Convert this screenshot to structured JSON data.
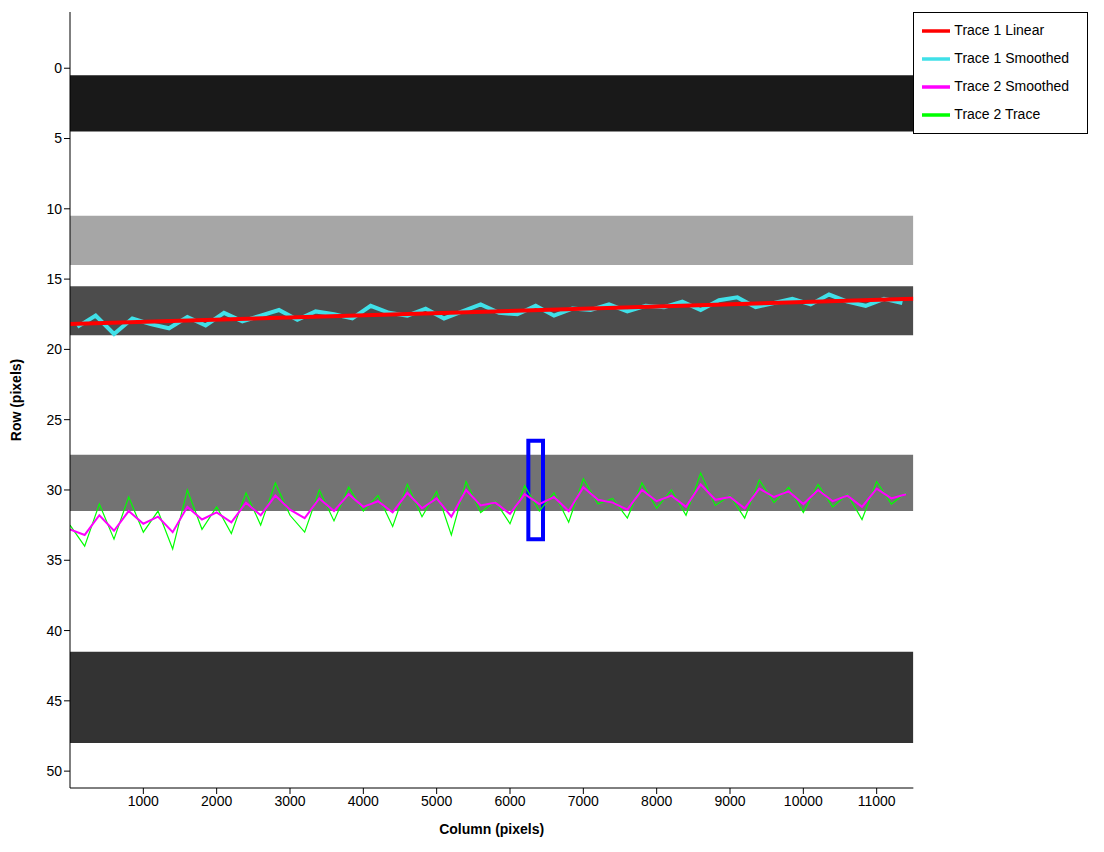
{
  "chart_data": {
    "type": "line",
    "x_label": "Column (pixels)",
    "y_label": "Row (pixels)",
    "xlim": [
      0,
      11500
    ],
    "ylim": [
      -4,
      51.2
    ],
    "xticks": [
      1000,
      2000,
      3000,
      4000,
      5000,
      6000,
      7000,
      8000,
      9000,
      10000,
      11000
    ],
    "yticks": [
      0,
      5,
      10,
      15,
      20,
      25,
      30,
      35,
      40,
      45,
      50
    ],
    "y_reversed": true,
    "legend": "right",
    "grid": false,
    "bands": [
      {
        "rows": [
          0.5,
          4.5
        ],
        "intensity": 0.9
      },
      {
        "rows": [
          10.5,
          14
        ],
        "intensity": 0.35
      },
      {
        "rows": [
          15.5,
          19
        ],
        "intensity": 0.7
      },
      {
        "rows": [
          27.5,
          31.5
        ],
        "intensity": 0.55
      },
      {
        "rows": [
          41.5,
          48
        ],
        "intensity": 0.8
      }
    ],
    "highlight": {
      "x": [
        6250,
        6450
      ],
      "y": [
        26.5,
        33.5
      ],
      "color": "#0000ff"
    },
    "series": [
      {
        "name": "Trace 1 Smoothed",
        "color": "#40e0e8",
        "line_style": "solid",
        "x": [
          100,
          350,
          600,
          850,
          1100,
          1350,
          1600,
          1850,
          2100,
          2350,
          2600,
          2850,
          3100,
          3350,
          3600,
          3850,
          4100,
          4350,
          4600,
          4850,
          5100,
          5350,
          5600,
          5850,
          6100,
          6350,
          6600,
          6850,
          7100,
          7350,
          7600,
          7850,
          8100,
          8350,
          8600,
          8850,
          9100,
          9350,
          9600,
          9850,
          10100,
          10350,
          10600,
          10850,
          11100,
          11350
        ],
        "values": [
          18.4,
          17.6,
          18.9,
          17.8,
          18.2,
          18.5,
          17.7,
          18.3,
          17.4,
          18.0,
          17.6,
          17.2,
          17.9,
          17.3,
          17.5,
          17.8,
          16.9,
          17.4,
          17.6,
          17.1,
          17.8,
          17.3,
          16.8,
          17.4,
          17.5,
          16.9,
          17.6,
          17.1,
          17.2,
          16.8,
          17.3,
          16.9,
          17.0,
          16.6,
          17.2,
          16.5,
          16.3,
          17.0,
          16.7,
          16.4,
          16.8,
          16.1,
          16.6,
          16.9,
          16.4,
          16.7
        ]
      },
      {
        "name": "Trace 1 Linear",
        "color": "#ff0000",
        "line_style": "solid",
        "x": [
          0,
          11500
        ],
        "values": [
          18.2,
          16.4
        ]
      },
      {
        "name": "Trace 2 Trace",
        "color": "#00ff00",
        "line_style": "solid",
        "x": [
          0,
          200,
          400,
          600,
          800,
          1000,
          1200,
          1400,
          1600,
          1800,
          2000,
          2200,
          2400,
          2600,
          2800,
          3000,
          3200,
          3400,
          3600,
          3800,
          4000,
          4200,
          4400,
          4600,
          4800,
          5000,
          5200,
          5400,
          5600,
          5800,
          6000,
          6200,
          6400,
          6600,
          6800,
          7000,
          7200,
          7400,
          7600,
          7800,
          8000,
          8200,
          8400,
          8600,
          8800,
          9000,
          9200,
          9400,
          9600,
          9800,
          10000,
          10200,
          10400,
          10600,
          10800,
          11000,
          11200,
          11400
        ],
        "values": [
          32.5,
          34.0,
          31.0,
          33.5,
          30.5,
          33.0,
          31.5,
          34.2,
          30.0,
          32.8,
          31.2,
          33.1,
          30.2,
          32.5,
          29.5,
          31.8,
          33.0,
          30.0,
          32.2,
          29.8,
          31.5,
          30.4,
          32.6,
          29.6,
          31.9,
          30.1,
          33.2,
          29.4,
          31.6,
          30.8,
          32.4,
          29.7,
          31.5,
          30.2,
          32.3,
          29.2,
          31.0,
          30.6,
          32.0,
          29.5,
          31.3,
          30.0,
          31.8,
          28.8,
          31.1,
          30.4,
          32.0,
          29.3,
          30.9,
          29.8,
          31.6,
          29.6,
          31.2,
          30.3,
          32.1,
          29.4,
          31.0,
          30.2
        ]
      },
      {
        "name": "Trace 2 Smoothed",
        "color": "#ff00ff",
        "line_style": "solid",
        "x": [
          0,
          200,
          400,
          600,
          800,
          1000,
          1200,
          1400,
          1600,
          1800,
          2000,
          2200,
          2400,
          2600,
          2800,
          3000,
          3200,
          3400,
          3600,
          3800,
          4000,
          4200,
          4400,
          4600,
          4800,
          5000,
          5200,
          5400,
          5600,
          5800,
          6000,
          6200,
          6400,
          6600,
          6800,
          7000,
          7200,
          7400,
          7600,
          7800,
          8000,
          8200,
          8400,
          8600,
          8800,
          9000,
          9200,
          9400,
          9600,
          9800,
          10000,
          10200,
          10400,
          10600,
          10800,
          11000,
          11200,
          11400
        ],
        "values": [
          32.8,
          33.2,
          31.8,
          32.9,
          31.5,
          32.4,
          31.9,
          33.0,
          31.2,
          32.1,
          31.6,
          32.3,
          30.9,
          31.8,
          30.4,
          31.4,
          32.0,
          30.6,
          31.5,
          30.3,
          31.2,
          30.8,
          31.6,
          30.2,
          31.3,
          30.6,
          31.9,
          30.0,
          31.1,
          30.9,
          31.7,
          30.3,
          31.0,
          30.5,
          31.5,
          29.8,
          30.7,
          30.9,
          31.4,
          30.0,
          30.8,
          30.4,
          31.2,
          29.6,
          30.7,
          30.5,
          31.3,
          29.9,
          30.5,
          30.1,
          31.0,
          30.0,
          30.8,
          30.4,
          31.2,
          29.9,
          30.6,
          30.3
        ]
      }
    ]
  }
}
